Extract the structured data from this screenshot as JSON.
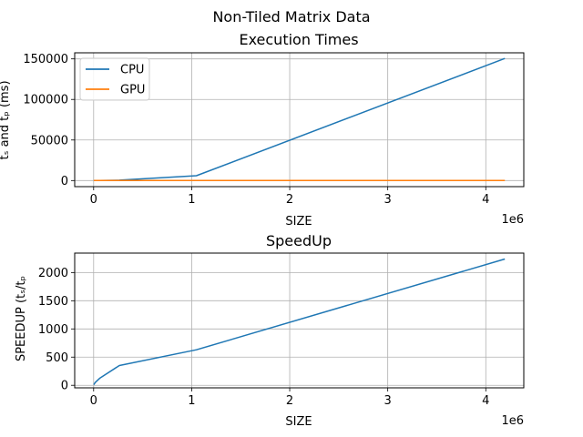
{
  "figure": {
    "suptitle": "Non-Tiled Matrix Data"
  },
  "chart_data": [
    {
      "type": "line",
      "title": "Execution Times",
      "xlabel": "SIZE",
      "ylabel": "tₛ and tₚ (ms)",
      "x_offset_label": "1e6",
      "xlim": [
        -193200,
        4387600
      ],
      "ylim": [
        -7500,
        157500
      ],
      "x_ticks": [
        0,
        1,
        2,
        3,
        4
      ],
      "x_tick_scale": 1000000,
      "y_ticks": [
        0,
        50000,
        100000,
        150000
      ],
      "y_tick_labels": [
        "0",
        "50000",
        "100000",
        "150000"
      ],
      "grid": true,
      "legend": "upper-left",
      "series": [
        {
          "name": "CPU",
          "color": "#1f77b4",
          "x": [
            1024,
            16384,
            65536,
            262144,
            1048576,
            4194304
          ],
          "y": [
            0,
            15,
            80,
            500,
            6000,
            150500
          ]
        },
        {
          "name": "GPU",
          "color": "#ff7f0e",
          "x": [
            1024,
            16384,
            65536,
            262144,
            1048576,
            4194304
          ],
          "y": [
            0,
            0,
            1,
            2,
            10,
            67
          ]
        }
      ]
    },
    {
      "type": "line",
      "title": "SpeedUp",
      "xlabel": "SIZE",
      "ylabel": "SPEEDUP (tₛ/tₚ",
      "x_offset_label": "1e6",
      "xlim": [
        -193200,
        4387600
      ],
      "ylim": [
        -45,
        2345
      ],
      "x_ticks": [
        0,
        1,
        2,
        3,
        4
      ],
      "x_tick_scale": 1000000,
      "y_ticks": [
        0,
        500,
        1000,
        1500,
        2000
      ],
      "y_tick_labels": [
        "0",
        "500",
        "1000",
        "1500",
        "2000"
      ],
      "grid": true,
      "series": [
        {
          "color": "#1f77b4",
          "x": [
            1024,
            16384,
            65536,
            262144,
            1048576,
            4194304
          ],
          "y": [
            10,
            50,
            130,
            350,
            630,
            2240
          ]
        }
      ]
    }
  ]
}
